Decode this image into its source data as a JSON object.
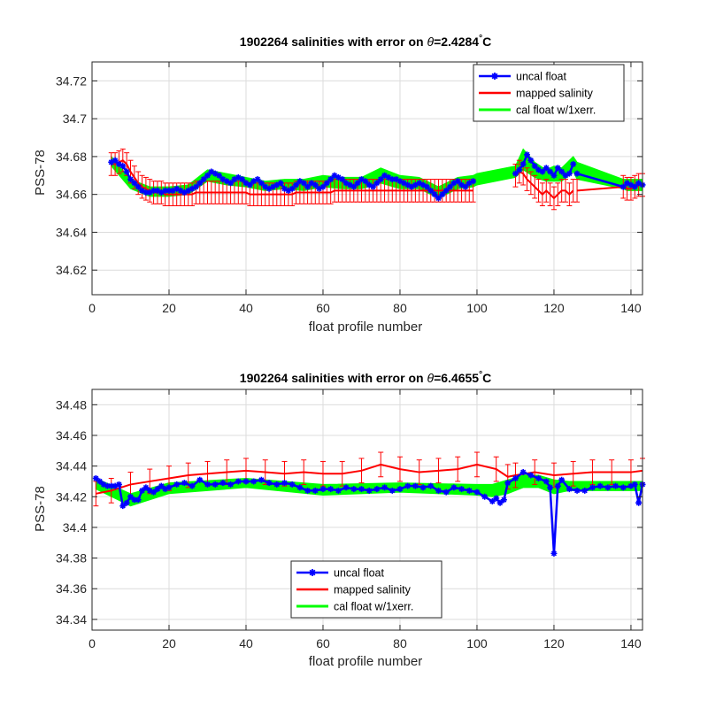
{
  "chart_data": [
    {
      "type": "line",
      "title": "1902264 salinities with error on ",
      "title_symbol": "θ",
      "title_value": "=2.4284",
      "title_degree": "°",
      "title_unit": "C",
      "xlabel": "float profile number",
      "ylabel": "PSS-78",
      "xlim": [
        0,
        143
      ],
      "ylim": [
        34.607,
        34.73
      ],
      "xticks": [
        "0",
        "20",
        "40",
        "60",
        "80",
        "100",
        "120",
        "140"
      ],
      "xtick_values": [
        0,
        20,
        40,
        60,
        80,
        100,
        120,
        140
      ],
      "yticks": [
        "34.62",
        "34.64",
        "34.66",
        "34.68",
        "34.7",
        "34.72"
      ],
      "ytick_values": [
        34.62,
        34.64,
        34.66,
        34.68,
        34.7,
        34.72
      ],
      "grid": true,
      "legend_position": "top-right",
      "legend": [
        "uncal float",
        "mapped salinity",
        "cal float w/1xerr."
      ],
      "colors": {
        "uncal": "#0000ff",
        "mapped": "#ff0000",
        "cal": "#00ff00"
      },
      "gaps_after": [
        99,
        125
      ],
      "series": [
        {
          "name": "uncal float",
          "x": [
            5,
            6,
            7,
            8,
            9,
            10,
            11,
            12,
            13,
            14,
            15,
            16,
            17,
            18,
            19,
            20,
            21,
            22,
            23,
            24,
            25,
            26,
            27,
            28,
            29,
            30,
            31,
            32,
            33,
            34,
            35,
            36,
            37,
            38,
            39,
            40,
            41,
            42,
            43,
            44,
            45,
            46,
            47,
            48,
            49,
            50,
            51,
            52,
            53,
            54,
            55,
            56,
            57,
            58,
            59,
            60,
            61,
            62,
            63,
            64,
            65,
            66,
            67,
            68,
            69,
            70,
            71,
            72,
            73,
            74,
            75,
            76,
            77,
            78,
            79,
            80,
            81,
            82,
            83,
            84,
            85,
            86,
            87,
            88,
            89,
            90,
            91,
            92,
            93,
            94,
            95,
            96,
            97,
            98,
            99,
            110,
            111,
            112,
            113,
            114,
            115,
            116,
            117,
            118,
            119,
            120,
            121,
            122,
            123,
            124,
            125,
            126,
            138,
            139,
            140,
            141,
            142,
            143
          ],
          "values": [
            34.677,
            34.678,
            34.676,
            34.675,
            34.672,
            34.668,
            34.666,
            34.664,
            34.662,
            34.661,
            34.661,
            34.662,
            34.662,
            34.661,
            34.662,
            34.662,
            34.662,
            34.663,
            34.662,
            34.661,
            34.662,
            34.663,
            34.664,
            34.666,
            34.668,
            34.67,
            34.672,
            34.671,
            34.67,
            34.668,
            34.667,
            34.666,
            34.668,
            34.669,
            34.668,
            34.666,
            34.665,
            34.667,
            34.668,
            34.666,
            34.664,
            34.663,
            34.664,
            34.665,
            34.666,
            34.663,
            34.662,
            34.663,
            34.665,
            34.667,
            34.666,
            34.664,
            34.666,
            34.665,
            34.663,
            34.664,
            34.666,
            34.668,
            34.67,
            34.669,
            34.668,
            34.666,
            34.665,
            34.664,
            34.666,
            34.668,
            34.667,
            34.665,
            34.664,
            34.666,
            34.668,
            34.67,
            34.669,
            34.668,
            34.668,
            34.667,
            34.666,
            34.665,
            34.664,
            34.665,
            34.666,
            34.665,
            34.664,
            34.662,
            34.66,
            34.658,
            34.66,
            34.662,
            34.664,
            34.666,
            34.667,
            34.665,
            34.664,
            34.666,
            34.667,
            34.671,
            34.673,
            34.676,
            34.681,
            34.678,
            34.675,
            34.673,
            34.672,
            34.674,
            34.672,
            34.67,
            34.674,
            34.672,
            34.67,
            34.671,
            34.676,
            34.671,
            34.664,
            34.666,
            34.665,
            34.664,
            34.666,
            34.665
          ]
        },
        {
          "name": "mapped salinity",
          "x": [
            5,
            6,
            7,
            8,
            9,
            10,
            11,
            12,
            13,
            14,
            15,
            16,
            17,
            18,
            19,
            20,
            21,
            22,
            23,
            24,
            25,
            26,
            27,
            28,
            29,
            30,
            31,
            32,
            33,
            34,
            35,
            36,
            37,
            38,
            39,
            40,
            41,
            42,
            43,
            44,
            45,
            46,
            47,
            48,
            49,
            50,
            51,
            52,
            53,
            54,
            55,
            56,
            57,
            58,
            59,
            60,
            61,
            62,
            63,
            64,
            65,
            66,
            67,
            68,
            69,
            70,
            71,
            72,
            73,
            74,
            75,
            76,
            77,
            78,
            79,
            80,
            81,
            82,
            83,
            84,
            85,
            86,
            87,
            88,
            89,
            90,
            91,
            92,
            93,
            94,
            95,
            96,
            97,
            98,
            99,
            110,
            111,
            112,
            113,
            114,
            115,
            116,
            117,
            118,
            119,
            120,
            121,
            122,
            123,
            124,
            125,
            126,
            138,
            139,
            140,
            141,
            142,
            143
          ],
          "values": [
            34.676,
            34.676,
            34.677,
            34.678,
            34.676,
            34.672,
            34.669,
            34.666,
            34.664,
            34.663,
            34.662,
            34.661,
            34.661,
            34.661,
            34.66,
            34.66,
            34.66,
            34.66,
            34.66,
            34.66,
            34.66,
            34.66,
            34.661,
            34.661,
            34.661,
            34.661,
            34.661,
            34.661,
            34.661,
            34.661,
            34.661,
            34.661,
            34.661,
            34.661,
            34.661,
            34.661,
            34.66,
            34.66,
            34.66,
            34.66,
            34.66,
            34.66,
            34.66,
            34.66,
            34.66,
            34.66,
            34.66,
            34.66,
            34.661,
            34.661,
            34.661,
            34.661,
            34.661,
            34.661,
            34.661,
            34.661,
            34.661,
            34.661,
            34.662,
            34.662,
            34.662,
            34.662,
            34.662,
            34.662,
            34.662,
            34.662,
            34.662,
            34.662,
            34.662,
            34.662,
            34.662,
            34.662,
            34.662,
            34.662,
            34.662,
            34.662,
            34.662,
            34.662,
            34.662,
            34.662,
            34.662,
            34.662,
            34.662,
            34.662,
            34.662,
            34.662,
            34.662,
            34.662,
            34.662,
            34.662,
            34.662,
            34.662,
            34.662,
            34.662,
            34.662,
            34.67,
            34.672,
            34.671,
            34.668,
            34.666,
            34.664,
            34.662,
            34.66,
            34.662,
            34.66,
            34.658,
            34.66,
            34.662,
            34.662,
            34.66,
            34.662,
            34.662,
            34.664,
            34.663,
            34.663,
            34.664,
            34.665,
            34.665
          ]
        },
        {
          "name": "cal float w/1xerr.",
          "band_x": [
            5,
            10,
            15,
            20,
            25,
            30,
            35,
            40,
            45,
            50,
            55,
            60,
            65,
            70,
            75,
            80,
            85,
            90,
            95,
            99,
            100,
            110,
            112,
            115,
            118,
            120,
            122,
            125,
            126,
            138,
            139,
            142,
            143
          ],
          "band_lower": [
            34.675,
            34.663,
            34.659,
            34.659,
            34.66,
            34.667,
            34.665,
            34.664,
            34.662,
            34.663,
            34.662,
            34.664,
            34.663,
            34.663,
            34.666,
            34.663,
            34.663,
            34.658,
            34.663,
            34.664,
            34.665,
            34.669,
            34.673,
            34.669,
            34.667,
            34.667,
            34.667,
            34.672,
            34.668,
            34.663,
            34.662,
            34.662,
            34.662
          ],
          "band_upper": [
            34.68,
            34.668,
            34.664,
            34.664,
            34.665,
            34.673,
            34.671,
            34.669,
            34.667,
            34.668,
            34.668,
            34.67,
            34.669,
            34.669,
            34.674,
            34.67,
            34.669,
            34.664,
            34.669,
            34.67,
            34.671,
            34.675,
            34.684,
            34.677,
            34.673,
            34.675,
            34.674,
            34.68,
            34.677,
            34.668,
            34.668,
            34.668,
            34.668
          ]
        }
      ],
      "mapped_error": 0.006
    },
    {
      "type": "line",
      "title": "1902264 salinities with error on ",
      "title_symbol": "θ",
      "title_value": "=6.4655",
      "title_degree": "°",
      "title_unit": "C",
      "xlabel": "float profile number",
      "ylabel": "PSS-78",
      "xlim": [
        0,
        143
      ],
      "ylim": [
        34.333,
        34.49
      ],
      "xticks": [
        "0",
        "20",
        "40",
        "60",
        "80",
        "100",
        "120",
        "140"
      ],
      "xtick_values": [
        0,
        20,
        40,
        60,
        80,
        100,
        120,
        140
      ],
      "yticks": [
        "34.34",
        "34.36",
        "34.38",
        "34.4",
        "34.42",
        "34.44",
        "34.46",
        "34.48"
      ],
      "ytick_values": [
        34.34,
        34.36,
        34.38,
        34.4,
        34.42,
        34.44,
        34.46,
        34.48
      ],
      "grid": true,
      "legend_position": "bottom-center",
      "legend": [
        "uncal float",
        "mapped salinity",
        "cal float w/1xerr."
      ],
      "colors": {
        "uncal": "#0000ff",
        "mapped": "#ff0000",
        "cal": "#00ff00"
      },
      "gaps_after": [],
      "series": [
        {
          "name": "uncal float",
          "x": [
            1,
            2,
            3,
            4,
            5,
            6,
            7,
            8,
            9,
            10,
            11,
            12,
            13,
            14,
            15,
            16,
            17,
            18,
            19,
            20,
            22,
            24,
            26,
            28,
            30,
            32,
            34,
            36,
            38,
            40,
            42,
            44,
            46,
            48,
            50,
            52,
            54,
            56,
            58,
            60,
            62,
            64,
            66,
            68,
            70,
            72,
            74,
            76,
            78,
            80,
            82,
            84,
            86,
            88,
            90,
            92,
            94,
            96,
            98,
            100,
            102,
            104,
            105,
            106,
            107,
            108,
            110,
            112,
            114,
            116,
            118,
            119,
            120,
            121,
            122,
            124,
            126,
            128,
            130,
            132,
            134,
            136,
            138,
            140,
            141,
            142,
            143
          ],
          "values": [
            34.432,
            34.43,
            34.428,
            34.427,
            34.427,
            34.427,
            34.428,
            34.414,
            34.416,
            34.42,
            34.418,
            34.418,
            34.424,
            34.426,
            34.424,
            34.423,
            34.425,
            34.427,
            34.425,
            34.426,
            34.428,
            34.429,
            34.427,
            34.431,
            34.428,
            34.428,
            34.429,
            34.428,
            34.43,
            34.43,
            34.43,
            34.431,
            34.429,
            34.428,
            34.429,
            34.428,
            34.426,
            34.424,
            34.424,
            34.425,
            34.425,
            34.424,
            34.426,
            34.425,
            34.425,
            34.424,
            34.425,
            34.426,
            34.424,
            34.425,
            34.427,
            34.427,
            34.426,
            34.427,
            34.424,
            34.423,
            34.426,
            34.425,
            34.424,
            34.423,
            34.42,
            34.417,
            34.419,
            34.416,
            34.418,
            34.429,
            34.432,
            34.436,
            34.434,
            34.432,
            34.43,
            34.426,
            34.383,
            34.427,
            34.431,
            34.425,
            34.424,
            34.424,
            34.426,
            34.427,
            34.426,
            34.427,
            34.426,
            34.427,
            34.428,
            34.416,
            34.428
          ]
        },
        {
          "name": "mapped salinity",
          "x": [
            1,
            5,
            10,
            15,
            20,
            25,
            30,
            35,
            40,
            45,
            50,
            55,
            60,
            65,
            70,
            75,
            80,
            85,
            90,
            95,
            100,
            105,
            108,
            110,
            115,
            120,
            125,
            130,
            135,
            140,
            143
          ],
          "values": [
            34.422,
            34.424,
            34.428,
            34.43,
            34.432,
            34.434,
            34.435,
            34.436,
            34.437,
            34.436,
            34.435,
            34.436,
            34.435,
            34.435,
            34.437,
            34.441,
            34.438,
            34.436,
            34.437,
            34.438,
            34.441,
            34.438,
            34.433,
            34.434,
            34.436,
            34.434,
            34.435,
            34.436,
            34.436,
            34.436,
            34.437
          ],
          "error": 0.008
        },
        {
          "name": "cal float w/1xerr.",
          "band_x": [
            1,
            10,
            20,
            40,
            60,
            80,
            100,
            104,
            108,
            112,
            116,
            120,
            124,
            130,
            140,
            143
          ],
          "band_lower": [
            34.425,
            34.414,
            34.422,
            34.426,
            34.421,
            34.423,
            34.421,
            34.42,
            34.422,
            34.426,
            34.426,
            34.422,
            34.424,
            34.424,
            34.424,
            34.424
          ],
          "band_upper": [
            34.432,
            34.422,
            34.429,
            34.432,
            34.428,
            34.429,
            34.428,
            34.428,
            34.431,
            34.434,
            34.434,
            34.431,
            34.43,
            34.43,
            34.43,
            34.43
          ]
        }
      ]
    }
  ]
}
